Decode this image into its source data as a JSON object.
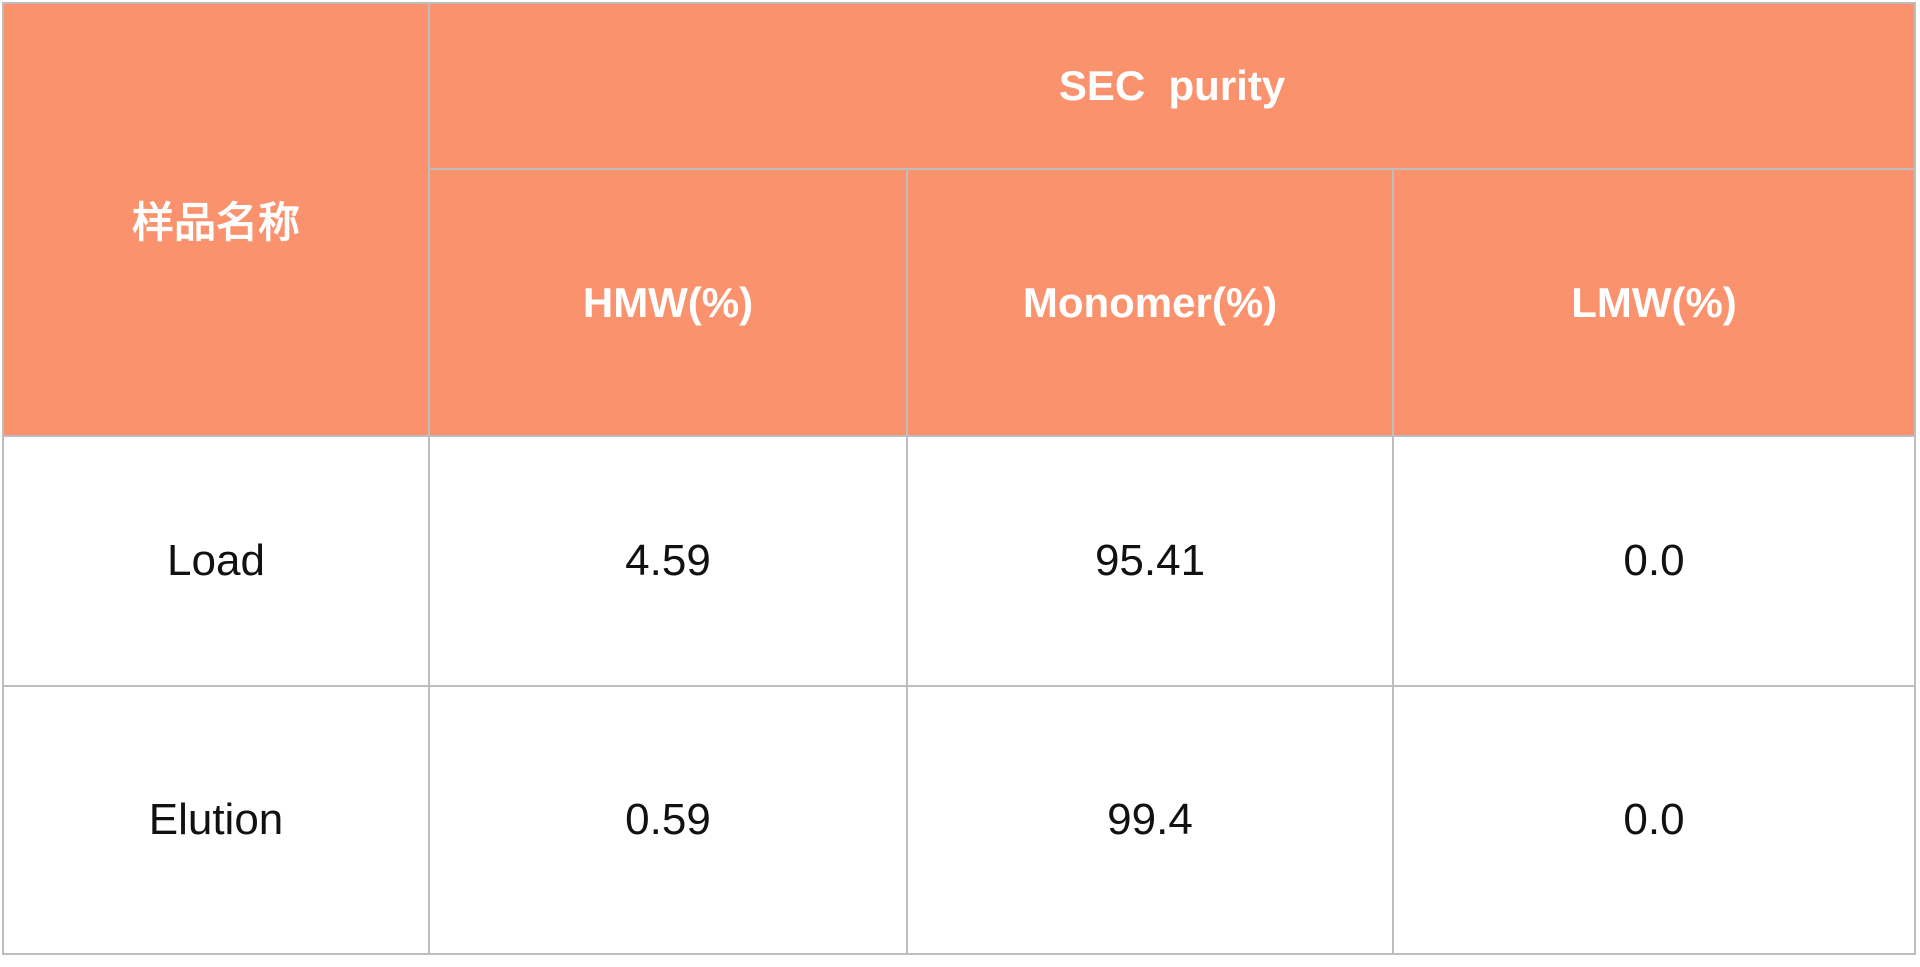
{
  "table": {
    "header": {
      "sample_name_label": "样品名称",
      "group_label": "SEC  purity",
      "columns": [
        "HMW(%)",
        "Monomer(%)",
        "LMW(%)"
      ]
    },
    "rows": [
      {
        "name": "Load",
        "hmw": "4.59",
        "monomer": "95.41",
        "lmw": "0.0"
      },
      {
        "name": "Elution",
        "hmw": "0.59",
        "monomer": "99.4",
        "lmw": "0.0"
      }
    ],
    "colors": {
      "header_bg": "#f9926d",
      "header_text": "#ffffff",
      "body_text": "#111111",
      "grid_line": "#bdbdbd",
      "body_bg": "#ffffff"
    }
  }
}
